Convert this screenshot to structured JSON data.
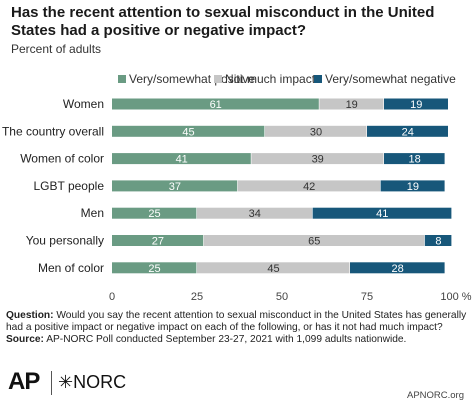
{
  "title": "Has the recent attention to sexual misconduct in the United States had a positive or negative impact?",
  "subtitle": "Percent of adults",
  "colors": {
    "positive": "#6a9b83",
    "neutral": "#c6c6c6",
    "negative": "#17577a"
  },
  "chart_data": {
    "type": "bar",
    "orientation": "horizontal",
    "stacked": true,
    "categories": [
      "Women",
      "The country overall",
      "Women of color",
      "LGBT people",
      "Men",
      "You personally",
      "Men of color"
    ],
    "series": [
      {
        "name": "Very/somewhat positive",
        "values": [
          61,
          45,
          41,
          37,
          25,
          27,
          25
        ]
      },
      {
        "name": "Not much impact",
        "values": [
          19,
          30,
          39,
          42,
          34,
          65,
          45
        ]
      },
      {
        "name": "Very/somewhat negative",
        "values": [
          19,
          24,
          18,
          19,
          41,
          8,
          28
        ]
      }
    ],
    "xlim": [
      0,
      100
    ],
    "x_ticks": [
      "0",
      "25",
      "50",
      "75",
      "100 %"
    ],
    "grid": false,
    "legend": "top"
  },
  "footnote": {
    "question_label": "Question:",
    "question_text": " Would you say the recent attention to sexual misconduct in the United States has generally had a positive impact or negative impact on each of the following, or has it not had much impact?",
    "source_label": "Source:",
    "source_text": " AP-NORC Poll conducted September 23-27, 2021 with 1,099 adults nationwide."
  },
  "logos": {
    "ap": "AP",
    "norc": "NORC",
    "norc_mark": "✳"
  },
  "site": "APNORC.org"
}
